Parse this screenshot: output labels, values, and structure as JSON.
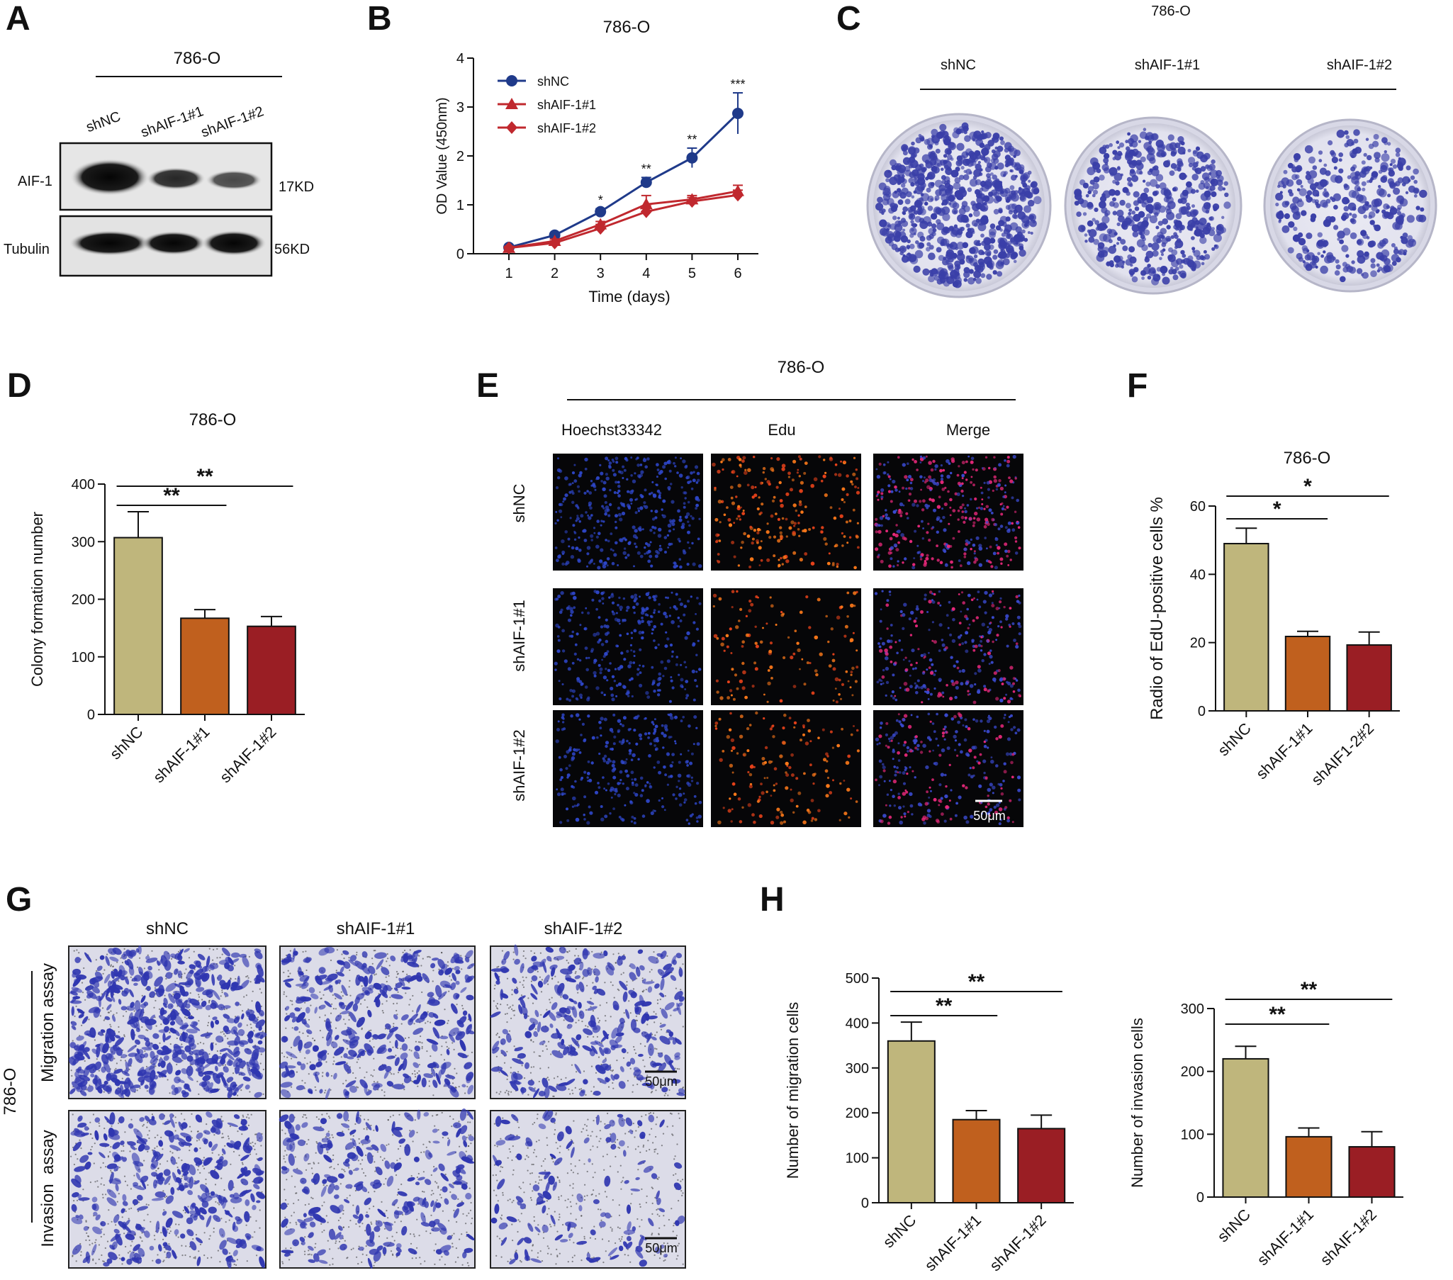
{
  "panels": {
    "A": {
      "label": "A",
      "cell_line": "786-O",
      "lanes": [
        "shNC",
        "shAIF-1#1",
        "shAIF-1#2"
      ],
      "proteins": [
        {
          "name": "AIF-1",
          "size": "17KD"
        },
        {
          "name": "Tubulin",
          "size": "56KD"
        }
      ]
    },
    "B": {
      "label": "B"
    },
    "C": {
      "label": "C",
      "cell_line": "786-O",
      "groups": [
        "shNC",
        "shAIF-1#1",
        "shAIF-1#2"
      ]
    },
    "D": {
      "label": "D"
    },
    "E": {
      "label": "E",
      "cell_line": "786-O",
      "channels": [
        "Hoechst33342",
        "Edu",
        "Merge"
      ],
      "rows": [
        "shNC",
        "shAIF-1#1",
        "shAIF-1#2"
      ],
      "scale_bar": "50μm"
    },
    "F": {
      "label": "F"
    },
    "G": {
      "label": "G",
      "cell_line": "786-O",
      "columns": [
        "shNC",
        "shAIF-1#1",
        "shAIF-1#2"
      ],
      "rows": [
        "Migration assay",
        "Invasion  assay"
      ],
      "scale_bar": "50μm"
    },
    "H": {
      "label": "H"
    }
  },
  "colors": {
    "shNC": "#bfb67c",
    "shAIF-1#1": "#c0601e",
    "shAIF-1#2": "#9a1e24",
    "line_shNC": "#1f3a8a",
    "line_sh": "#c0282e",
    "crystal_violet": "#3a3fa8"
  },
  "chart_data": [
    {
      "id": "B",
      "type": "line",
      "title": "786-O",
      "xlabel": "Time (days)",
      "ylabel": "OD Value (450nm)",
      "x": [
        1,
        2,
        3,
        4,
        5,
        6
      ],
      "ylim": [
        0,
        4
      ],
      "yticks": [
        0,
        1,
        2,
        3,
        4
      ],
      "legend": "top-left",
      "series": [
        {
          "name": "shNC",
          "values": [
            0.13,
            0.38,
            0.86,
            1.46,
            1.96,
            2.87
          ],
          "errors": [
            0.03,
            0.04,
            0.06,
            0.1,
            0.2,
            0.42
          ],
          "marker": "circle"
        },
        {
          "name": "shAIF-1#1",
          "values": [
            0.12,
            0.26,
            0.6,
            1.01,
            1.11,
            1.28
          ],
          "errors": [
            0.03,
            0.04,
            0.06,
            0.18,
            0.08,
            0.12
          ],
          "marker": "triangle"
        },
        {
          "name": "shAIF-1#2",
          "values": [
            0.12,
            0.22,
            0.52,
            0.86,
            1.07,
            1.2
          ],
          "errors": [
            0.03,
            0.04,
            0.08,
            0.12,
            0.08,
            0.1
          ],
          "marker": "diamond"
        }
      ],
      "annotations": [
        {
          "x": 3,
          "text": "*"
        },
        {
          "x": 4,
          "text": "**"
        },
        {
          "x": 5,
          "text": "**"
        },
        {
          "x": 6,
          "text": "***"
        }
      ]
    },
    {
      "id": "D",
      "type": "bar",
      "title": "786-O",
      "ylabel": "Colony formation number",
      "categories": [
        "shNC",
        "shAIF-1#1",
        "shAIF-1#2"
      ],
      "values": [
        307,
        167,
        153
      ],
      "errors": [
        45,
        15,
        17
      ],
      "ylim": [
        0,
        400
      ],
      "yticks": [
        0,
        100,
        200,
        300,
        400
      ],
      "significance": [
        {
          "from": 0,
          "to": 1,
          "text": "**"
        },
        {
          "from": 0,
          "to": 2,
          "text": "**"
        }
      ]
    },
    {
      "id": "F",
      "type": "bar",
      "title": "786-O",
      "ylabel": "Radio of EdU-positive cells %",
      "categories": [
        "shNC",
        "shAIF-1#1",
        "shAIF1-2#2"
      ],
      "values": [
        49,
        21.8,
        19.3
      ],
      "errors": [
        4.5,
        1.5,
        3.8
      ],
      "ylim": [
        0,
        60
      ],
      "yticks": [
        0,
        20,
        40,
        60
      ],
      "significance": [
        {
          "from": 0,
          "to": 1,
          "text": "*"
        },
        {
          "from": 0,
          "to": 2,
          "text": "*"
        }
      ]
    },
    {
      "id": "H1",
      "type": "bar",
      "ylabel": "Number of migration cells",
      "categories": [
        "shNC",
        "shAIF-1#1",
        "shAIF-1#2"
      ],
      "values": [
        360,
        185,
        165
      ],
      "errors": [
        42,
        20,
        30
      ],
      "ylim": [
        0,
        500
      ],
      "yticks": [
        0,
        100,
        200,
        300,
        400,
        500
      ],
      "significance": [
        {
          "from": 0,
          "to": 1,
          "text": "**"
        },
        {
          "from": 0,
          "to": 2,
          "text": "**"
        }
      ]
    },
    {
      "id": "H2",
      "type": "bar",
      "ylabel": "Number of invasion cells",
      "categories": [
        "shNC",
        "shAIF-1#1",
        "shAIF-1#2"
      ],
      "values": [
        220,
        96,
        80
      ],
      "errors": [
        20,
        14,
        24
      ],
      "ylim": [
        0,
        300
      ],
      "yticks": [
        0,
        100,
        200,
        300
      ],
      "significance": [
        {
          "from": 0,
          "to": 1,
          "text": "**"
        },
        {
          "from": 0,
          "to": 2,
          "text": "**"
        }
      ]
    }
  ]
}
